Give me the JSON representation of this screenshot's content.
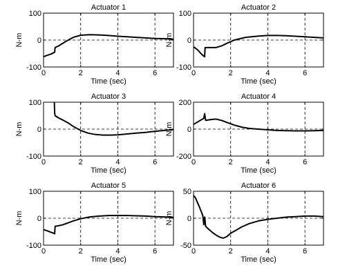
{
  "chart_data": [
    {
      "type": "line",
      "title": "Actuator 1",
      "xlabel": "Time (sec)",
      "ylabel": "N-m",
      "xlim": [
        0,
        7
      ],
      "ylim": [
        -100,
        100
      ],
      "xticks": [
        0,
        2,
        4,
        6
      ],
      "yticks": [
        100,
        0,
        -100
      ],
      "grid": "dashed",
      "series": [
        {
          "x": [
            0,
            0.15,
            0.4,
            0.55,
            0.6,
            0.62,
            0.8,
            1.2,
            1.6,
            2.0,
            2.5,
            3.0,
            3.5,
            4.0,
            4.5,
            5.0,
            5.5,
            6.0,
            6.5,
            7.0
          ],
          "values": [
            -62,
            -58,
            -52,
            -47,
            -45,
            -28,
            -22,
            -5,
            10,
            18,
            20,
            19,
            17,
            14,
            12,
            10,
            8,
            6,
            5,
            3
          ]
        }
      ]
    },
    {
      "type": "line",
      "title": "Actuator 2",
      "xlabel": "Time (sec)",
      "ylabel": "N-m",
      "xlim": [
        0,
        7
      ],
      "ylim": [
        -100,
        100
      ],
      "xticks": [
        0,
        2,
        4,
        6
      ],
      "yticks": [
        100,
        0,
        -100
      ],
      "grid": "dashed",
      "series": [
        {
          "x": [
            0,
            0.2,
            0.4,
            0.55,
            0.6,
            0.62,
            0.8,
            1.2,
            1.5,
            1.8,
            2.2,
            2.8,
            3.5,
            4.0,
            4.5,
            5.0,
            5.5,
            6.0,
            6.5,
            7.0
          ],
          "values": [
            -25,
            -35,
            -50,
            -60,
            -62,
            -28,
            -28,
            -28,
            -22,
            -12,
            0,
            10,
            15,
            17,
            17,
            16,
            14,
            12,
            10,
            8
          ]
        }
      ]
    },
    {
      "type": "line",
      "title": "Actuator 3",
      "xlabel": "Time (sec)",
      "ylabel": "N-m",
      "xlim": [
        0,
        7
      ],
      "ylim": [
        -100,
        100
      ],
      "xticks": [
        0,
        2,
        4,
        6
      ],
      "yticks": [
        100,
        0,
        -100
      ],
      "grid": "dashed",
      "series": [
        {
          "x": [
            0.58,
            0.6,
            0.62,
            0.8,
            1.0,
            1.3,
            1.6,
            2.0,
            2.4,
            2.8,
            3.2,
            3.6,
            4.0,
            4.5,
            5.0,
            5.5,
            6.0,
            6.5,
            7.0
          ],
          "values": [
            100,
            60,
            50,
            42,
            35,
            24,
            10,
            -5,
            -15,
            -20,
            -22,
            -22,
            -21,
            -18,
            -15,
            -12,
            -8,
            -5,
            -2
          ]
        }
      ]
    },
    {
      "type": "line",
      "title": "Actuator 4",
      "xlabel": "Time (sec)",
      "ylabel": "N-m",
      "xlim": [
        0,
        7
      ],
      "ylim": [
        -200,
        200
      ],
      "xticks": [
        0,
        2,
        4,
        6
      ],
      "yticks": [
        200,
        0,
        -200
      ],
      "grid": "dashed",
      "series": [
        {
          "x": [
            0,
            0.3,
            0.55,
            0.6,
            0.65,
            0.9,
            1.2,
            1.5,
            1.8,
            2.2,
            2.6,
            3.0,
            3.5,
            4.0,
            4.5,
            5.0,
            5.5,
            6.0,
            6.5,
            7.0
          ],
          "values": [
            35,
            60,
            80,
            115,
            65,
            70,
            75,
            65,
            50,
            30,
            15,
            5,
            0,
            -5,
            -10,
            -12,
            -13,
            -13,
            -12,
            -10
          ]
        }
      ]
    },
    {
      "type": "line",
      "title": "Actuator 5",
      "xlabel": "Time (sec)",
      "ylabel": "N-m",
      "xlim": [
        0,
        7
      ],
      "ylim": [
        -100,
        100
      ],
      "xticks": [
        0,
        2,
        4,
        6
      ],
      "yticks": [
        100,
        0,
        -100
      ],
      "grid": "dashed",
      "series": [
        {
          "x": [
            0,
            0.2,
            0.4,
            0.55,
            0.6,
            0.62,
            0.8,
            1.0,
            1.3,
            1.6,
            2.0,
            2.5,
            3.0,
            3.5,
            4.0,
            4.5,
            5.0,
            5.5,
            6.0,
            6.5,
            7.0
          ],
          "values": [
            -42,
            -47,
            -52,
            -56,
            -58,
            -30,
            -28,
            -25,
            -18,
            -10,
            -2,
            5,
            8,
            10,
            10,
            10,
            9,
            8,
            6,
            5,
            3
          ]
        }
      ]
    },
    {
      "type": "line",
      "title": "Actuator 6",
      "xlabel": "Time (sec)",
      "ylabel": "N-m",
      "xlim": [
        0,
        7
      ],
      "ylim": [
        -50,
        50
      ],
      "xticks": [
        0,
        2,
        4,
        6
      ],
      "yticks": [
        50,
        0,
        -50
      ],
      "grid": "dashed",
      "series": [
        {
          "x": [
            0,
            0.1,
            0.3,
            0.5,
            0.55,
            0.6,
            0.65,
            0.8,
            1.0,
            1.2,
            1.4,
            1.6,
            1.8,
            2.0,
            2.3,
            2.6,
            3.0,
            3.5,
            4.0,
            4.5,
            5.0,
            5.5,
            6.0,
            6.5,
            7.0
          ],
          "values": [
            42,
            38,
            22,
            5,
            -12,
            2,
            -15,
            -20,
            -26,
            -31,
            -35,
            -37,
            -34,
            -28,
            -22,
            -16,
            -10,
            -5,
            -2,
            0,
            2,
            3,
            4,
            4,
            3
          ]
        }
      ]
    }
  ]
}
